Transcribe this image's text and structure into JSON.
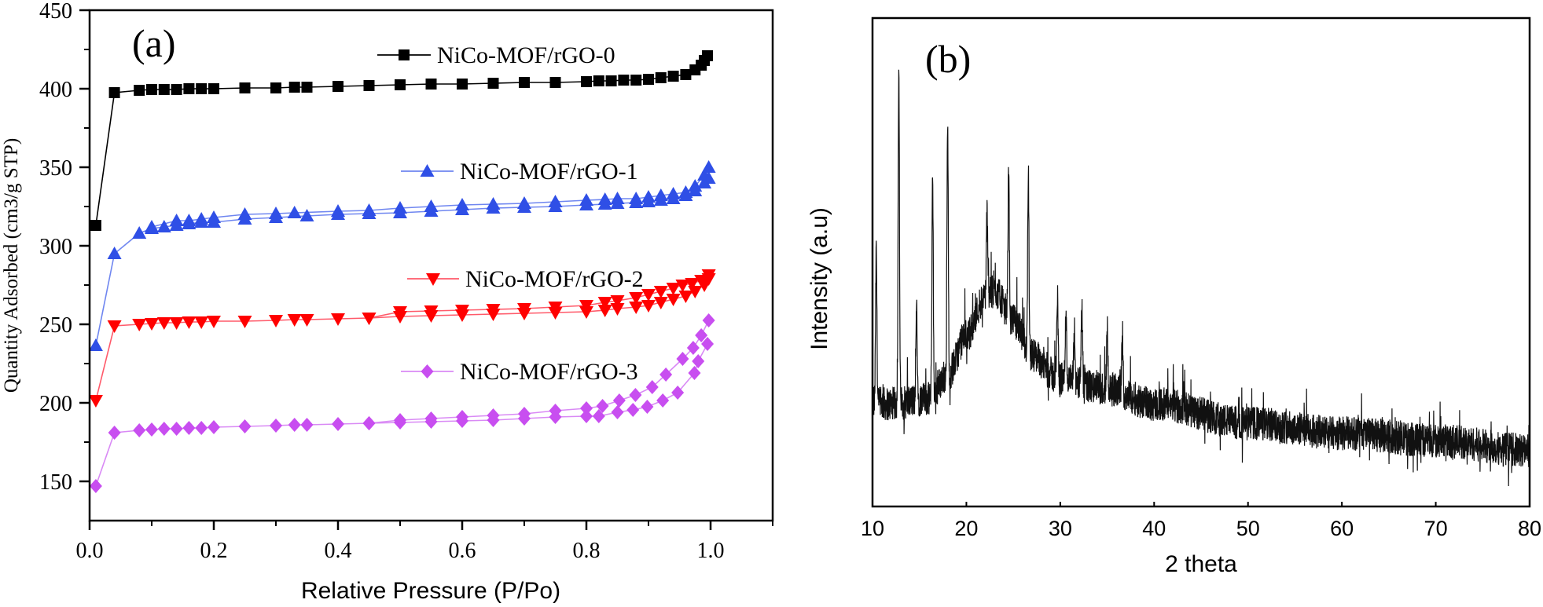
{
  "chart_data": [
    {
      "panel_label": "(a)",
      "type": "line",
      "xlabel": "Relative Pressure (P/Po)",
      "ylabel": "Quantity Adsorbed (cm3/g STP)",
      "xlim": [
        0,
        1.1
      ],
      "ylim": [
        125,
        450
      ],
      "xticks": [
        "0.0",
        "0.2",
        "0.4",
        "0.6",
        "0.8",
        "1.0"
      ],
      "yticks": [
        "150",
        "200",
        "250",
        "300",
        "350",
        "400",
        "450"
      ],
      "grid": false,
      "legend_placement": "inline, beside each curve",
      "series": [
        {
          "name": "NiCo-MOF/rGO-0",
          "marker": "square",
          "color": "#000000",
          "line_color": "#000000",
          "adsorption": {
            "x": [
              0.01,
              0.04,
              0.08,
              0.1,
              0.12,
              0.14,
              0.16,
              0.18,
              0.2,
              0.25,
              0.3,
              0.33,
              0.35,
              0.4,
              0.45,
              0.5,
              0.55,
              0.6,
              0.65,
              0.7,
              0.75,
              0.8,
              0.82,
              0.84,
              0.86,
              0.88,
              0.9,
              0.92,
              0.94,
              0.96,
              0.975,
              0.985,
              0.99,
              0.995
            ],
            "y": [
              313,
              397.5,
              399,
              399.5,
              399.5,
              399.5,
              400,
              400,
              400,
              400.5,
              400.5,
              401,
              401,
              401.5,
              402,
              402.5,
              403,
              403,
              403.5,
              404,
              404,
              404.5,
              405,
              405,
              405.5,
              405.5,
              406,
              407,
              408,
              409,
              412,
              415,
              418,
              421
            ]
          },
          "desorption": {
            "x": [],
            "y": []
          }
        },
        {
          "name": "NiCo-MOF/rGO-1",
          "marker": "triangle-up",
          "color": "#2f4fe6",
          "line_color": "#6f86f0",
          "adsorption": {
            "x": [
              0.01,
              0.04,
              0.08,
              0.1,
              0.12,
              0.14,
              0.16,
              0.18,
              0.2,
              0.25,
              0.3,
              0.35,
              0.4,
              0.45,
              0.5,
              0.55,
              0.6,
              0.65,
              0.7,
              0.75,
              0.8,
              0.83,
              0.85,
              0.88,
              0.9,
              0.92,
              0.94,
              0.96,
              0.975,
              0.99,
              0.997
            ],
            "y": [
              236.5,
              295,
              308,
              311,
              312,
              313,
              314,
              315,
              315,
              317,
              318,
              319,
              320,
              320.5,
              321,
              322,
              323,
              324,
              324.5,
              325,
              326,
              326.5,
              327,
              327.5,
              328,
              329,
              330,
              332,
              335,
              340,
              343
            ]
          },
          "desorption": {
            "x": [
              0.997,
              0.99,
              0.975,
              0.96,
              0.94,
              0.92,
              0.9,
              0.88,
              0.85,
              0.83,
              0.8,
              0.75,
              0.7,
              0.65,
              0.6,
              0.55,
              0.5,
              0.45,
              0.4,
              0.33,
              0.3,
              0.25,
              0.2,
              0.18,
              0.16,
              0.14,
              0.1
            ],
            "y": [
              350,
              345,
              338,
              334,
              333,
              332,
              331,
              330,
              330,
              329.5,
              329,
              328,
              327,
              326.5,
              326,
              325,
              324,
              322.5,
              322,
              321,
              320.5,
              320,
              318,
              317,
              316,
              316,
              312
            ]
          }
        },
        {
          "name": "NiCo-MOF/rGO-2",
          "marker": "triangle-down",
          "color": "#ff0000",
          "line_color": "#ff5a6a",
          "adsorption": {
            "x": [
              0.01,
              0.04,
              0.08,
              0.1,
              0.12,
              0.14,
              0.16,
              0.18,
              0.2,
              0.25,
              0.3,
              0.33,
              0.35,
              0.4,
              0.45,
              0.5,
              0.55,
              0.6,
              0.65,
              0.7,
              0.75,
              0.8,
              0.83,
              0.85,
              0.88,
              0.9,
              0.92,
              0.94,
              0.96,
              0.975,
              0.99,
              0.997
            ],
            "y": [
              201.5,
              249,
              250,
              250.5,
              251,
              251,
              251.5,
              251.5,
              252,
              252,
              252.5,
              253,
              253,
              253.5,
              254,
              255,
              255.5,
              256,
              256.5,
              257,
              257.5,
              258,
              259,
              260,
              261,
              262,
              264,
              266,
              268,
              271,
              275,
              279
            ]
          },
          "desorption": {
            "x": [
              0.997,
              0.985,
              0.97,
              0.955,
              0.94,
              0.92,
              0.9,
              0.88,
              0.85,
              0.83,
              0.8,
              0.75,
              0.7,
              0.65,
              0.6,
              0.55,
              0.5,
              0.45
            ],
            "y": [
              281.5,
              278,
              276,
              275,
              273,
              271,
              269,
              267,
              265,
              264,
              262,
              261,
              260,
              259.5,
              259,
              258.5,
              258,
              254
            ]
          }
        },
        {
          "name": "NiCo-MOF/rGO-3",
          "marker": "diamond",
          "color": "#c84ef0",
          "line_color": "#d98af5",
          "adsorption": {
            "x": [
              0.01,
              0.04,
              0.08,
              0.1,
              0.12,
              0.14,
              0.16,
              0.18,
              0.2,
              0.25,
              0.3,
              0.33,
              0.35,
              0.4,
              0.45,
              0.5,
              0.55,
              0.6,
              0.65,
              0.7,
              0.75,
              0.8,
              0.82,
              0.85,
              0.875,
              0.898,
              0.923,
              0.947,
              0.974,
              0.98,
              0.995
            ],
            "y": [
              147,
              181,
              182.5,
              183,
              183.5,
              183.5,
              184,
              184,
              184.5,
              185,
              185.5,
              186,
              186,
              186.5,
              187,
              187.5,
              188,
              188.5,
              189,
              190,
              191,
              191.5,
              191.5,
              194,
              195.5,
              197.5,
              201.5,
              206.5,
              219,
              226.5,
              237.5
            ]
          },
          "desorption": {
            "x": [
              0.997,
              0.985,
              0.972,
              0.955,
              0.928,
              0.906,
              0.879,
              0.853,
              0.826,
              0.8,
              0.75,
              0.7,
              0.65,
              0.6,
              0.55,
              0.5,
              0.45
            ],
            "y": [
              252.5,
              243,
              235,
              228,
              218,
              210,
              205,
              201.5,
              198,
              196.5,
              195,
              193,
              192,
              191,
              190,
              189,
              187
            ]
          }
        }
      ]
    },
    {
      "panel_label": "(b)",
      "type": "line",
      "xlabel": "2 theta",
      "ylabel": "Intensity (a.u)",
      "xlim": [
        10,
        80
      ],
      "ylim": [
        0,
        100
      ],
      "xticks": [
        "10",
        "20",
        "30",
        "40",
        "50",
        "60",
        "70",
        "80"
      ],
      "yticks": [],
      "grid": false,
      "color": "#111111",
      "background_profile": [
        [
          10,
          21
        ],
        [
          12,
          21
        ],
        [
          16,
          22
        ],
        [
          18,
          27
        ],
        [
          20,
          35
        ],
        [
          22,
          43
        ],
        [
          23,
          44
        ],
        [
          25,
          38
        ],
        [
          27,
          31
        ],
        [
          30,
          26
        ],
        [
          35,
          24
        ],
        [
          40,
          21
        ],
        [
          50,
          17
        ],
        [
          60,
          15
        ],
        [
          70,
          13.5
        ],
        [
          80,
          11.5
        ]
      ],
      "peaks": [
        [
          10.4,
          52
        ],
        [
          12.8,
          89.5
        ],
        [
          14.7,
          41
        ],
        [
          16.4,
          68
        ],
        [
          18.0,
          78
        ],
        [
          22.2,
          60
        ],
        [
          24.5,
          69
        ],
        [
          26.6,
          69
        ],
        [
          29.7,
          43
        ],
        [
          30.6,
          40.5
        ],
        [
          31.5,
          36
        ],
        [
          32.3,
          40
        ],
        [
          35.0,
          37
        ],
        [
          36.6,
          32.5
        ]
      ]
    }
  ]
}
